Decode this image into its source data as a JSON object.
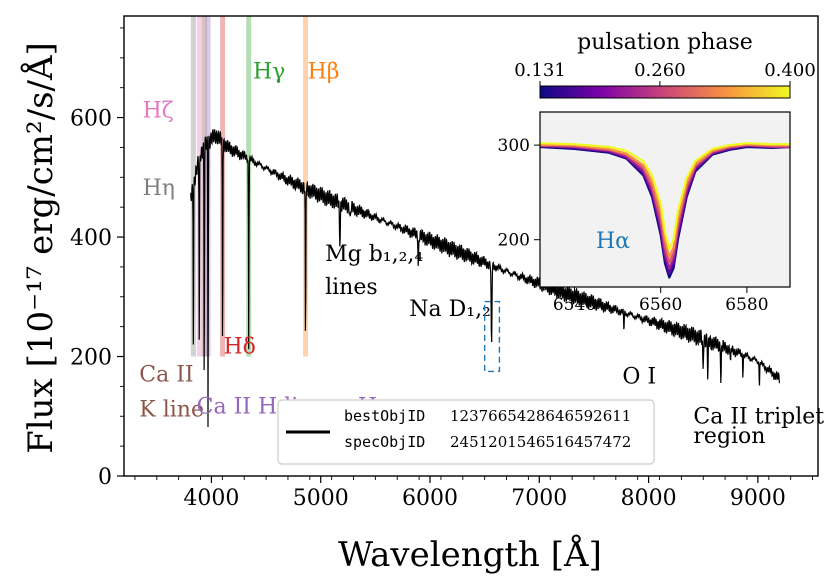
{
  "chart_data": [
    {
      "type": "line",
      "xlabel": "Wavelength [Å]",
      "ylabel": "Flux [10⁻¹⁷ erg/cm²/s/Å]",
      "xlim": [
        3200,
        9550
      ],
      "ylim": [
        0,
        770
      ],
      "xticks": [
        "4000",
        "5000",
        "6000",
        "7000",
        "8000",
        "9000"
      ],
      "yticks": [
        "0",
        "200",
        "400",
        "600"
      ],
      "grid": false,
      "legend": {
        "location": "lower-center",
        "entries": [
          {
            "key": "bestObjID",
            "value": "1237665428646592611"
          },
          {
            "key": "specObjID",
            "value": "2451201546516457472"
          }
        ]
      },
      "series": [
        {
          "color": "#000000",
          "x": [
            3810,
            3850,
            3900,
            3950,
            4000,
            4050,
            4100,
            4150,
            4200,
            4300,
            4400,
            4500,
            4600,
            4700,
            4800,
            4900,
            5000,
            5200,
            5400,
            5600,
            5800,
            6000,
            6200,
            6400,
            6600,
            6800,
            7000,
            7200,
            7400,
            7600,
            7800,
            8000,
            8200,
            8400,
            8600,
            8800,
            9000,
            9200
          ],
          "y": [
            465,
            500,
            540,
            555,
            565,
            570,
            560,
            550,
            545,
            535,
            525,
            515,
            505,
            495,
            487,
            478,
            470,
            455,
            440,
            425,
            410,
            395,
            380,
            365,
            350,
            335,
            322,
            308,
            296,
            284,
            272,
            260,
            248,
            236,
            222,
            208,
            192,
            162
          ]
        }
      ],
      "absorption_lines": [
        {
          "label": "Hζ",
          "wavelength": 3889,
          "depth_to": 195,
          "color": "#e377c2"
        },
        {
          "label": "Hη",
          "wavelength": 3835,
          "depth_to": 205,
          "color": "#7f7f7f"
        },
        {
          "label": "Ca II K line",
          "wavelength": 3934,
          "depth_to": 140,
          "color": "#8c564b"
        },
        {
          "label": "Ca II H line + Hε",
          "wavelength": 3969,
          "depth_to": 95,
          "color": "#9467bd"
        },
        {
          "label": "Hδ",
          "wavelength": 4102,
          "depth_to": 190,
          "color": "#d62728"
        },
        {
          "label": "Hγ",
          "wavelength": 4341,
          "depth_to": 215,
          "color": "#2ca02c"
        },
        {
          "label": "Hβ",
          "wavelength": 4861,
          "depth_to": 200,
          "color": "#ff7f0e"
        }
      ],
      "annotations": [
        {
          "text": "Hζ",
          "x": 3370,
          "y": 600,
          "color": "#e377c2"
        },
        {
          "text": "Hη",
          "x": 3370,
          "y": 470,
          "color": "#7f7f7f"
        },
        {
          "text": "Hγ",
          "x": 4380,
          "y": 665,
          "color": "#2ca02c"
        },
        {
          "text": "Hβ",
          "x": 4880,
          "y": 665,
          "color": "#ff7f0e"
        },
        {
          "text": "Hδ",
          "x": 4110,
          "y": 205,
          "color": "#d62728"
        },
        {
          "text": "Ca II",
          "x": 3340,
          "y": 158,
          "color": "#8c564b"
        },
        {
          "text": "K line",
          "x": 3340,
          "y": 100,
          "color": "#8c564b"
        },
        {
          "text": "Ca II H line + Hε",
          "x": 3865,
          "y": 105,
          "color": "#9467bd"
        },
        {
          "text": "Mg b₁,₂,₄",
          "x": 5040,
          "y": 360,
          "color": "#000000"
        },
        {
          "text": "lines",
          "x": 5040,
          "y": 305,
          "color": "#000000"
        },
        {
          "text": "Na D₁,₂",
          "x": 5810,
          "y": 268,
          "color": "#000000"
        },
        {
          "text": "O I",
          "x": 7760,
          "y": 155,
          "color": "#000000"
        },
        {
          "text": "Ca II triplet",
          "x": 8410,
          "y": 88,
          "color": "#000000"
        },
        {
          "text": "region",
          "x": 8410,
          "y": 55,
          "color": "#000000"
        }
      ],
      "highlight_box": {
        "x": [
          6500,
          6635
        ],
        "y": [
          175,
          292
        ],
        "color": "#1f77b4",
        "style": "dashed"
      }
    },
    {
      "type": "line",
      "role": "inset",
      "annotation": "Hα",
      "annotation_color": "#1f77b4",
      "xlim": [
        6532,
        6590
      ],
      "ylim": [
        150,
        335
      ],
      "xticks": [
        "6540",
        "6560",
        "6580"
      ],
      "yticks": [
        "200",
        "300"
      ],
      "background": "#f2f2f2",
      "colorbar": {
        "title": "pulsation phase",
        "min": 0.131,
        "max": 0.4,
        "ticks": [
          "0.131",
          "0.260",
          "0.400"
        ],
        "colormap": "plasma"
      },
      "series": [
        {
          "phase": 0.131,
          "x": [
            6532,
            6540,
            6548,
            6552,
            6556,
            6558,
            6560,
            6561,
            6562,
            6563,
            6564,
            6566,
            6568,
            6572,
            6576,
            6580,
            6586,
            6590
          ],
          "y": [
            298,
            296,
            292,
            286,
            268,
            245,
            205,
            175,
            160,
            170,
            200,
            245,
            272,
            290,
            295,
            298,
            297,
            298
          ]
        },
        {
          "phase": 0.18,
          "x": [
            6532,
            6540,
            6548,
            6552,
            6556,
            6558,
            6560,
            6561,
            6562,
            6563,
            6564,
            6566,
            6568,
            6572,
            6576,
            6580,
            6586,
            6590
          ],
          "y": [
            300,
            297,
            293,
            287,
            270,
            248,
            210,
            180,
            165,
            175,
            205,
            248,
            274,
            291,
            296,
            299,
            298,
            299
          ]
        },
        {
          "phase": 0.23,
          "x": [
            6532,
            6540,
            6548,
            6552,
            6556,
            6558,
            6560,
            6561,
            6562,
            6563,
            6564,
            6566,
            6568,
            6572,
            6576,
            6580,
            6586,
            6590
          ],
          "y": [
            299,
            298,
            294,
            288,
            273,
            252,
            215,
            185,
            170,
            180,
            210,
            252,
            276,
            292,
            297,
            300,
            298,
            298
          ]
        },
        {
          "phase": 0.28,
          "x": [
            6532,
            6540,
            6548,
            6552,
            6556,
            6558,
            6560,
            6561,
            6562,
            6563,
            6564,
            6566,
            6568,
            6572,
            6576,
            6580,
            6586,
            6590
          ],
          "y": [
            301,
            299,
            295,
            290,
            276,
            256,
            222,
            192,
            176,
            186,
            216,
            256,
            278,
            293,
            298,
            300,
            299,
            299
          ]
        },
        {
          "phase": 0.33,
          "x": [
            6532,
            6540,
            6548,
            6552,
            6556,
            6558,
            6560,
            6561,
            6562,
            6563,
            6564,
            6566,
            6568,
            6572,
            6576,
            6580,
            6586,
            6590
          ],
          "y": [
            300,
            300,
            296,
            291,
            279,
            262,
            230,
            200,
            182,
            192,
            222,
            260,
            280,
            294,
            299,
            301,
            300,
            300
          ]
        },
        {
          "phase": 0.4,
          "x": [
            6532,
            6540,
            6548,
            6552,
            6556,
            6558,
            6560,
            6561,
            6562,
            6563,
            6564,
            6566,
            6568,
            6572,
            6576,
            6580,
            6586,
            6590
          ],
          "y": [
            302,
            301,
            298,
            294,
            283,
            268,
            238,
            208,
            190,
            200,
            230,
            265,
            283,
            296,
            300,
            302,
            301,
            301
          ]
        }
      ]
    }
  ]
}
